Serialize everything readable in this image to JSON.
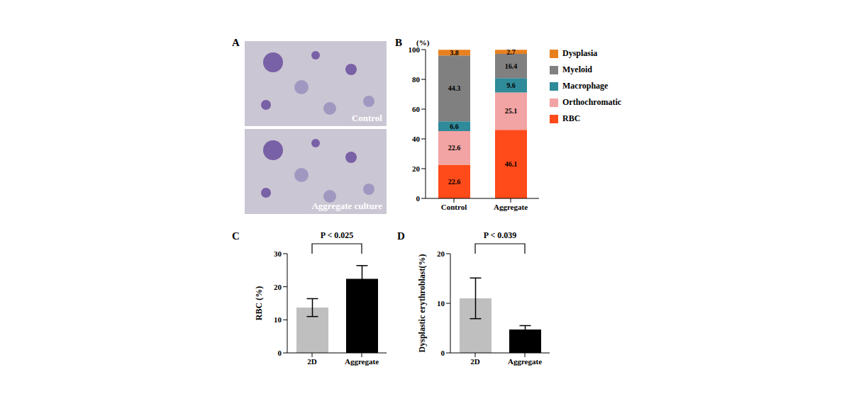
{
  "chart_data": [
    {
      "panel_label": "B",
      "type": "bar",
      "stacked": true,
      "data_labels": true,
      "legend": "right",
      "y_label": "(%)",
      "categories": [
        "Control",
        "Aggregate"
      ],
      "series": [
        {
          "name": "RBC",
          "color": "#ff4a1a",
          "values": [
            22.6,
            46.1
          ]
        },
        {
          "name": "Orthochromatic",
          "color": "#f2a3a3",
          "values": [
            22.6,
            25.1
          ]
        },
        {
          "name": "Macrophage",
          "color": "#2f8a99",
          "values": [
            6.6,
            9.6
          ]
        },
        {
          "name": "Myeloid",
          "color": "#808080",
          "values": [
            44.3,
            16.4
          ]
        },
        {
          "name": "Dysplasia",
          "color": "#e8801e",
          "values": [
            3.8,
            2.7
          ]
        }
      ],
      "ylim": [
        0,
        100
      ],
      "yticks": [
        0,
        20,
        40,
        60,
        80,
        100
      ]
    },
    {
      "panel_label": "C",
      "type": "bar",
      "categories": [
        "2D",
        "Aggregate"
      ],
      "values": [
        13.7,
        22.4
      ],
      "errors": [
        2.7,
        4.0
      ],
      "colors": [
        "#bfbfbf",
        "#000000"
      ],
      "y_label": "RBC (%)",
      "annotation": "P < 0.025",
      "ylim": [
        0,
        30
      ],
      "yticks": [
        0,
        10,
        20,
        30
      ]
    },
    {
      "panel_label": "D",
      "type": "bar",
      "categories": [
        "2D",
        "Aggregate"
      ],
      "values": [
        11.0,
        4.7
      ],
      "errors": [
        4.1,
        0.8
      ],
      "colors": [
        "#bfbfbf",
        "#000000"
      ],
      "y_label": "Dysplastic erythroblast(%)",
      "annotation": "P < 0.039",
      "ylim": [
        0,
        20
      ],
      "yticks": [
        0,
        10,
        20
      ]
    }
  ],
  "panel_a": {
    "panel_label": "A",
    "images": [
      "Control",
      "Aggregate culture"
    ]
  }
}
